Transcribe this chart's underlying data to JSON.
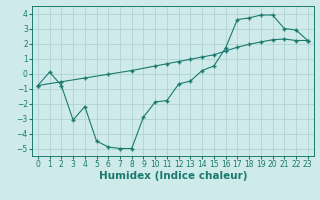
{
  "line1_x": [
    0,
    1,
    2,
    3,
    4,
    5,
    6,
    7,
    8,
    9,
    10,
    11,
    12,
    13,
    14,
    15,
    16,
    17,
    18,
    19,
    20,
    21,
    22,
    23
  ],
  "line1_y": [
    -0.8,
    0.1,
    -0.8,
    -3.1,
    -2.2,
    -4.5,
    -4.9,
    -5.0,
    -5.0,
    -2.9,
    -1.9,
    -1.8,
    -0.7,
    -0.5,
    0.2,
    0.5,
    1.7,
    3.6,
    3.7,
    3.9,
    3.9,
    3.0,
    2.9,
    2.2
  ],
  "line2_x": [
    0,
    2,
    4,
    6,
    8,
    10,
    11,
    12,
    13,
    14,
    15,
    16,
    17,
    18,
    19,
    20,
    21,
    22,
    23
  ],
  "line2_y": [
    -0.8,
    -0.55,
    -0.3,
    -0.05,
    0.2,
    0.5,
    0.65,
    0.8,
    0.95,
    1.1,
    1.25,
    1.5,
    1.75,
    1.95,
    2.1,
    2.25,
    2.3,
    2.2,
    2.2
  ],
  "line_color": "#1a7a6e",
  "marker": "+",
  "markersize": 3.0,
  "markeredgewidth": 1.0,
  "linewidth": 0.8,
  "bg_color": "#ceeaea",
  "grid_color": "#aacece",
  "xlabel": "Humidex (Indice chaleur)",
  "xlim": [
    -0.5,
    23.5
  ],
  "ylim": [
    -5.5,
    4.5
  ],
  "xticks": [
    0,
    1,
    2,
    3,
    4,
    5,
    6,
    7,
    8,
    9,
    10,
    11,
    12,
    13,
    14,
    15,
    16,
    17,
    18,
    19,
    20,
    21,
    22,
    23
  ],
  "yticks": [
    -5,
    -4,
    -3,
    -2,
    -1,
    0,
    1,
    2,
    3,
    4
  ],
  "tick_fontsize": 5.5,
  "xlabel_fontsize": 7.5
}
